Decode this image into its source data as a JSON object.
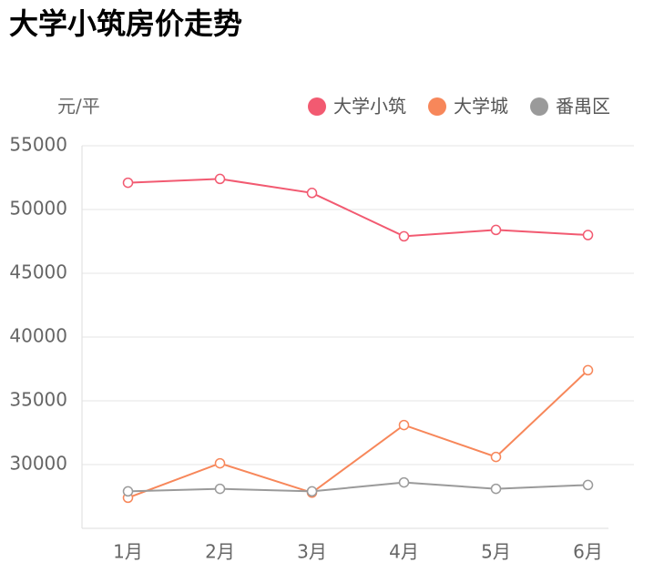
{
  "chart_data": {
    "type": "line",
    "title": "大学小筑房价走势",
    "y_unit": "元/平",
    "categories": [
      "1月",
      "2月",
      "3月",
      "4月",
      "5月",
      "6月"
    ],
    "series": [
      {
        "name": "大学小筑",
        "color": "#f25a71",
        "values": [
          52100,
          52400,
          51300,
          47900,
          48400,
          48000
        ]
      },
      {
        "name": "大学城",
        "color": "#f7875a",
        "values": [
          27400,
          30100,
          27800,
          33100,
          30600,
          37400
        ]
      },
      {
        "name": "番禺区",
        "color": "#9a9a9a",
        "values": [
          27900,
          28100,
          27900,
          28600,
          28100,
          28400
        ]
      }
    ],
    "ylim": [
      25000,
      55000
    ],
    "yticks": [
      30000,
      35000,
      40000,
      45000,
      50000,
      55000
    ],
    "grid": true
  }
}
